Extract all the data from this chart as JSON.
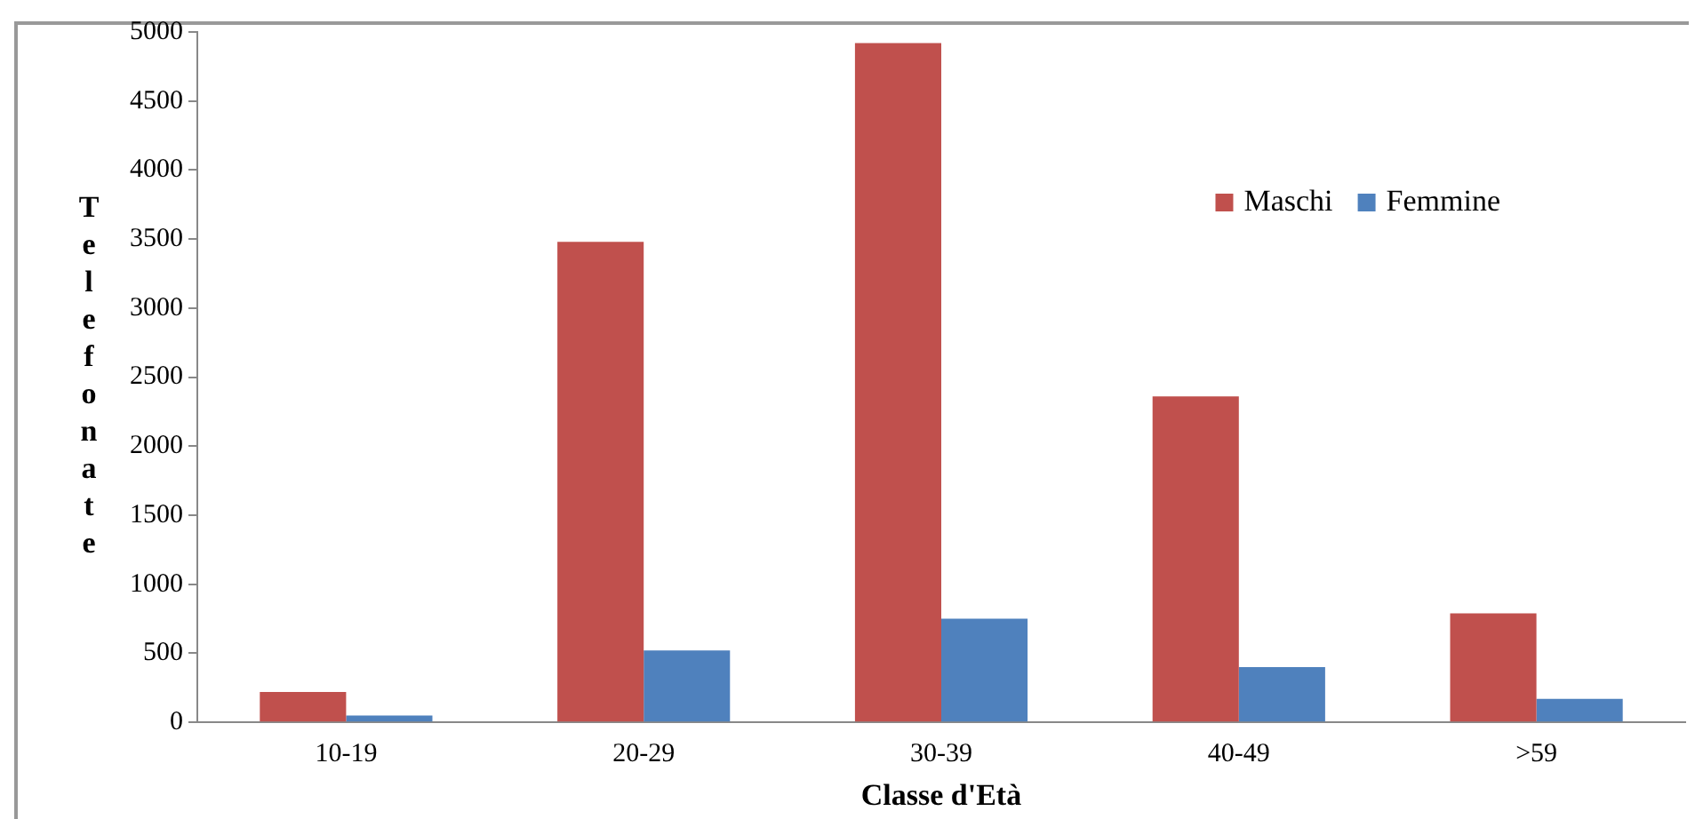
{
  "chart_data": {
    "type": "bar",
    "xlabel": "Classe d'Età",
    "ylabel": "Telefonate",
    "categories": [
      "10-19",
      "20-29",
      "30-39",
      "40-49",
      ">59"
    ],
    "series": [
      {
        "name": "Maschi",
        "color": "#c0504d",
        "values": [
          220,
          3480,
          4920,
          2360,
          790
        ]
      },
      {
        "name": "Femmine",
        "color": "#4f81bd",
        "values": [
          50,
          520,
          750,
          400,
          170
        ]
      }
    ],
    "ylim": [
      0,
      5000
    ],
    "yticks": [
      0,
      500,
      1000,
      1500,
      2000,
      2500,
      3000,
      3500,
      4000,
      4500,
      5000
    ],
    "grid": false,
    "legend": "top right"
  }
}
